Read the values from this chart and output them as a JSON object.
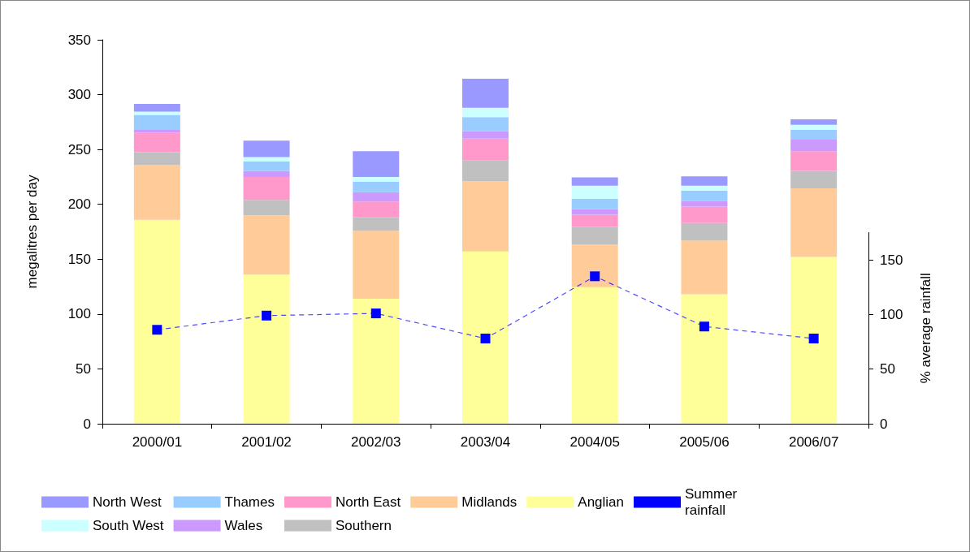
{
  "chart_data": {
    "type": "bar",
    "stacked": true,
    "categories": [
      "2000/01",
      "2001/02",
      "2002/03",
      "2003/04",
      "2004/05",
      "2005/06",
      "2006/07"
    ],
    "ylabel": "megalitres per day",
    "y2label": "% average rainfall",
    "ylim": [
      0,
      350
    ],
    "yticks": [
      0,
      50,
      100,
      150,
      200,
      250,
      300,
      350
    ],
    "y2lim": [
      0,
      175
    ],
    "y2ticks": [
      0,
      50,
      100,
      150
    ],
    "grid": false,
    "legend": "bottom",
    "series": [
      {
        "name": "Anglian",
        "color": "#ffff99",
        "values": [
          186,
          136,
          114,
          157,
          124.5,
          118,
          152
        ]
      },
      {
        "name": "Midlands",
        "color": "#ffcc99",
        "values": [
          50,
          54,
          62,
          64,
          39,
          49,
          62.5
        ]
      },
      {
        "name": "Southern",
        "color": "#c0c0c0",
        "values": [
          11.5,
          14,
          12.5,
          19,
          16,
          16,
          16
        ]
      },
      {
        "name": "North East",
        "color": "#ff99cc",
        "values": [
          18,
          21,
          14,
          20,
          11,
          15,
          18
        ]
      },
      {
        "name": "Wales",
        "color": "#cc99ff",
        "values": [
          3,
          5.5,
          8.5,
          6.5,
          5,
          5,
          11
        ]
      },
      {
        "name": "Thames",
        "color": "#99ccff",
        "values": [
          13,
          8.5,
          9.5,
          13,
          9.5,
          9.5,
          8.5
        ]
      },
      {
        "name": "South West",
        "color": "#ccffff",
        "values": [
          3,
          4,
          4.5,
          8.5,
          12,
          4.5,
          4.5
        ]
      },
      {
        "name": "North West",
        "color": "#9999ff",
        "values": [
          7,
          15,
          23.5,
          26.5,
          7.5,
          8.5,
          5
        ]
      },
      {
        "name": "Summer rainfall",
        "type": "line",
        "axis": "y2",
        "color": "#0000ff",
        "marker": "square",
        "line_style": "dashed",
        "values": [
          86,
          99,
          101,
          78,
          135,
          89,
          78
        ]
      }
    ]
  }
}
